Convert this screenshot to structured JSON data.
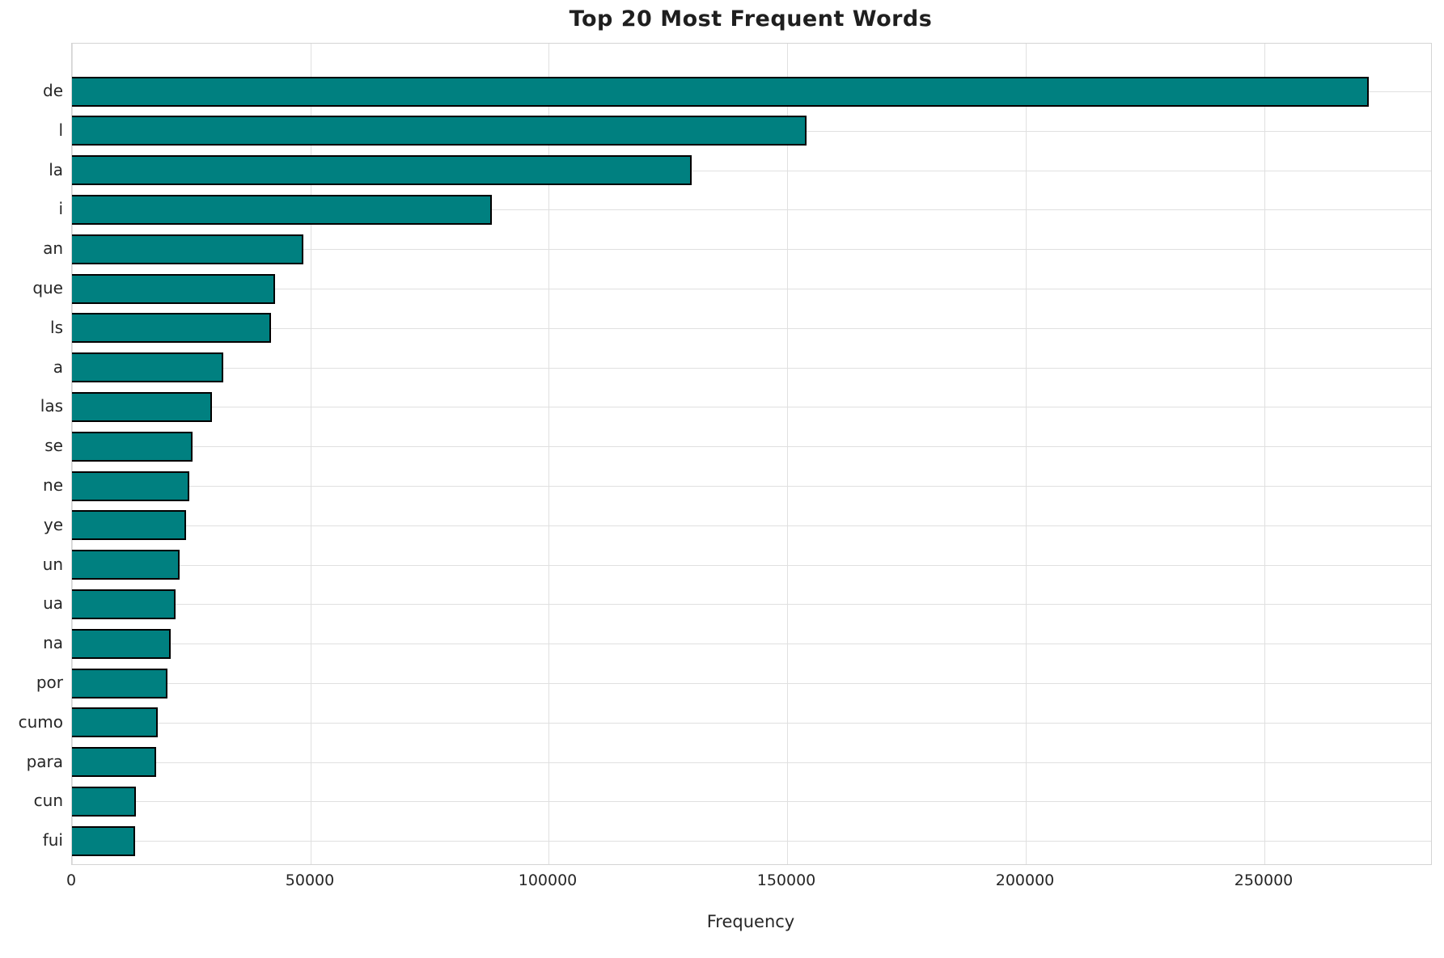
{
  "title": "Top 20 Most Frequent Words",
  "colors": {
    "bar_fill": "#008080",
    "bar_edge": "#000000",
    "grid": "#e0e0e0",
    "text": "#262626"
  },
  "chart_data": {
    "type": "bar",
    "orientation": "horizontal",
    "title": "Top 20 Most Frequent Words",
    "xlabel": "Frequency",
    "ylabel": "",
    "categories": [
      "de",
      "l",
      "la",
      "i",
      "an",
      "que",
      "ls",
      "a",
      "las",
      "se",
      "ne",
      "ye",
      "un",
      "ua",
      "na",
      "por",
      "cumo",
      "para",
      "cun",
      "fui"
    ],
    "values": [
      272000,
      154000,
      130000,
      88000,
      48500,
      42500,
      41800,
      31800,
      29400,
      25300,
      24600,
      24000,
      22600,
      21700,
      20700,
      20000,
      18000,
      17700,
      13400,
      13300
    ],
    "xlim": [
      0,
      285000
    ],
    "xticks": [
      0,
      50000,
      100000,
      150000,
      200000,
      250000
    ],
    "xtick_labels": [
      "0",
      "50000",
      "100000",
      "150000",
      "200000",
      "250000"
    ],
    "grid": true,
    "legend": false
  }
}
